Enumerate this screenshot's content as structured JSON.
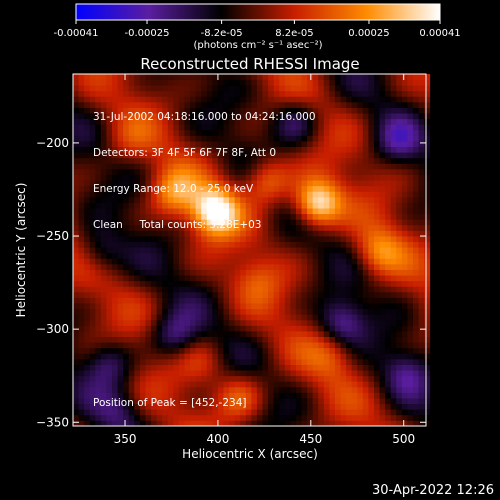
{
  "chart_data": {
    "type": "heatmap",
    "title": "Reconstructed RHESSI Image",
    "xlabel": "Heliocentric X (arcsec)",
    "ylabel": "Heliocentric Y (arcsec)",
    "xlim": [
      322,
      512
    ],
    "ylim": [
      -352,
      -163
    ],
    "x_ticks": [
      350,
      400,
      450,
      500
    ],
    "y_ticks": [
      -350,
      -300,
      -250,
      -200
    ],
    "colorbar": {
      "range": [
        -0.00041,
        0.00041
      ],
      "tick_values": [
        -0.00041,
        -0.00025,
        -8.2e-05,
        8.2e-05,
        0.00025,
        0.00041
      ],
      "tick_labels": [
        "-0.00041",
        "-0.00025",
        "-8.2e-05",
        "8.2e-05",
        "0.00025",
        "0.00041"
      ],
      "unit_label": "(photons cm⁻² s⁻¹ asec⁻²)",
      "colors": [
        "#0000ff",
        "#5a1ea0",
        "#000000",
        "#c81e00",
        "#ff8c00",
        "#ffffff"
      ]
    },
    "sources": [
      {
        "x": 397,
        "y": -238,
        "value": 0.00041
      },
      {
        "x": 452,
        "y": -234,
        "value": 0.00041
      },
      {
        "x": 425,
        "y": -222,
        "value": 0.00025
      },
      {
        "x": 375,
        "y": -228,
        "value": 0.00022
      },
      {
        "x": 485,
        "y": -260,
        "value": 0.0002
      },
      {
        "x": 410,
        "y": -338,
        "value": 0.00018
      },
      {
        "x": 460,
        "y": -315,
        "value": 0.00012
      },
      {
        "x": 390,
        "y": -318,
        "value": 0.0001
      },
      {
        "x": 350,
        "y": -200,
        "value": 8e-05
      },
      {
        "x": 420,
        "y": -275,
        "value": 0.0001
      },
      {
        "x": 375,
        "y": -305,
        "value": -0.0002
      },
      {
        "x": 340,
        "y": -320,
        "value": -0.00018
      },
      {
        "x": 465,
        "y": -298,
        "value": -0.00022
      },
      {
        "x": 500,
        "y": -325,
        "value": -0.00015
      },
      {
        "x": 440,
        "y": -190,
        "value": -0.00018
      },
      {
        "x": 495,
        "y": -200,
        "value": -0.00016
      },
      {
        "x": 335,
        "y": -260,
        "value": -0.00015
      },
      {
        "x": 345,
        "y": -345,
        "value": -0.00012
      }
    ],
    "info_lines": [
      "31-Jul-2002 04:18:16.000 to 04:24:16.000",
      "Detectors: 3F 4F 5F 6F 7F 8F, Att 0",
      "Energy Range: 12.0 - 25.0 keV",
      "Clean     Total counts: 5.28E+03"
    ],
    "peak_label": "Position of Peak = [452,-234]"
  },
  "footer": {
    "timestamp": "30-Apr-2022 12:26"
  }
}
